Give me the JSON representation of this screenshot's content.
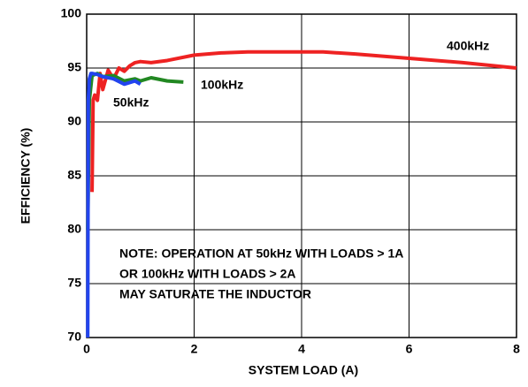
{
  "chart_data": {
    "type": "line",
    "xlabel": "SYSTEM LOAD (A)",
    "ylabel": "EFFICIENCY (%)",
    "xlim": [
      0,
      8
    ],
    "xticks": [
      0,
      2,
      4,
      6,
      8
    ],
    "ylim": [
      70,
      100
    ],
    "yticks": [
      70,
      75,
      80,
      85,
      90,
      95,
      100
    ],
    "grid": true,
    "series": [
      {
        "name": "400kHz",
        "color": "#ee2222",
        "x": [
          0.1,
          0.12,
          0.15,
          0.2,
          0.25,
          0.3,
          0.4,
          0.5,
          0.6,
          0.7,
          0.8,
          0.9,
          1,
          1.2,
          1.5,
          2,
          2.5,
          3,
          3.5,
          4,
          4.4,
          5,
          6,
          7,
          8
        ],
        "values": [
          83.5,
          92,
          92.5,
          92,
          94.5,
          93,
          94.8,
          94,
          95,
          94.7,
          95.2,
          95.5,
          95.6,
          95.5,
          95.7,
          96.2,
          96.4,
          96.5,
          96.5,
          96.5,
          96.5,
          96.3,
          95.9,
          95.5,
          95
        ]
      },
      {
        "name": "100kHz",
        "color": "#228822",
        "x": [
          0.02,
          0.05,
          0.1,
          0.2,
          0.3,
          0.5,
          0.7,
          0.9,
          1.0,
          1.2,
          1.5,
          1.8
        ],
        "values": [
          80,
          92,
          94.3,
          94.5,
          94.2,
          94.3,
          93.8,
          94,
          93.8,
          94.1,
          93.8,
          93.7
        ]
      },
      {
        "name": "50kHz",
        "color": "#2244ee",
        "x": [
          0.02,
          0.03,
          0.05,
          0.08,
          0.1,
          0.2,
          0.3,
          0.5,
          0.7,
          0.9,
          1.0
        ],
        "values": [
          70,
          92,
          94,
          94.5,
          94.5,
          94.4,
          94.2,
          94,
          93.5,
          93.8,
          93.5
        ]
      }
    ],
    "note": [
      "NOTE: OPERATION AT 50kHz WITH LOADS > 1A",
      "OR 100kHz WITH LOADS > 2A",
      "MAY SATURATE THE INDUCTOR"
    ]
  }
}
